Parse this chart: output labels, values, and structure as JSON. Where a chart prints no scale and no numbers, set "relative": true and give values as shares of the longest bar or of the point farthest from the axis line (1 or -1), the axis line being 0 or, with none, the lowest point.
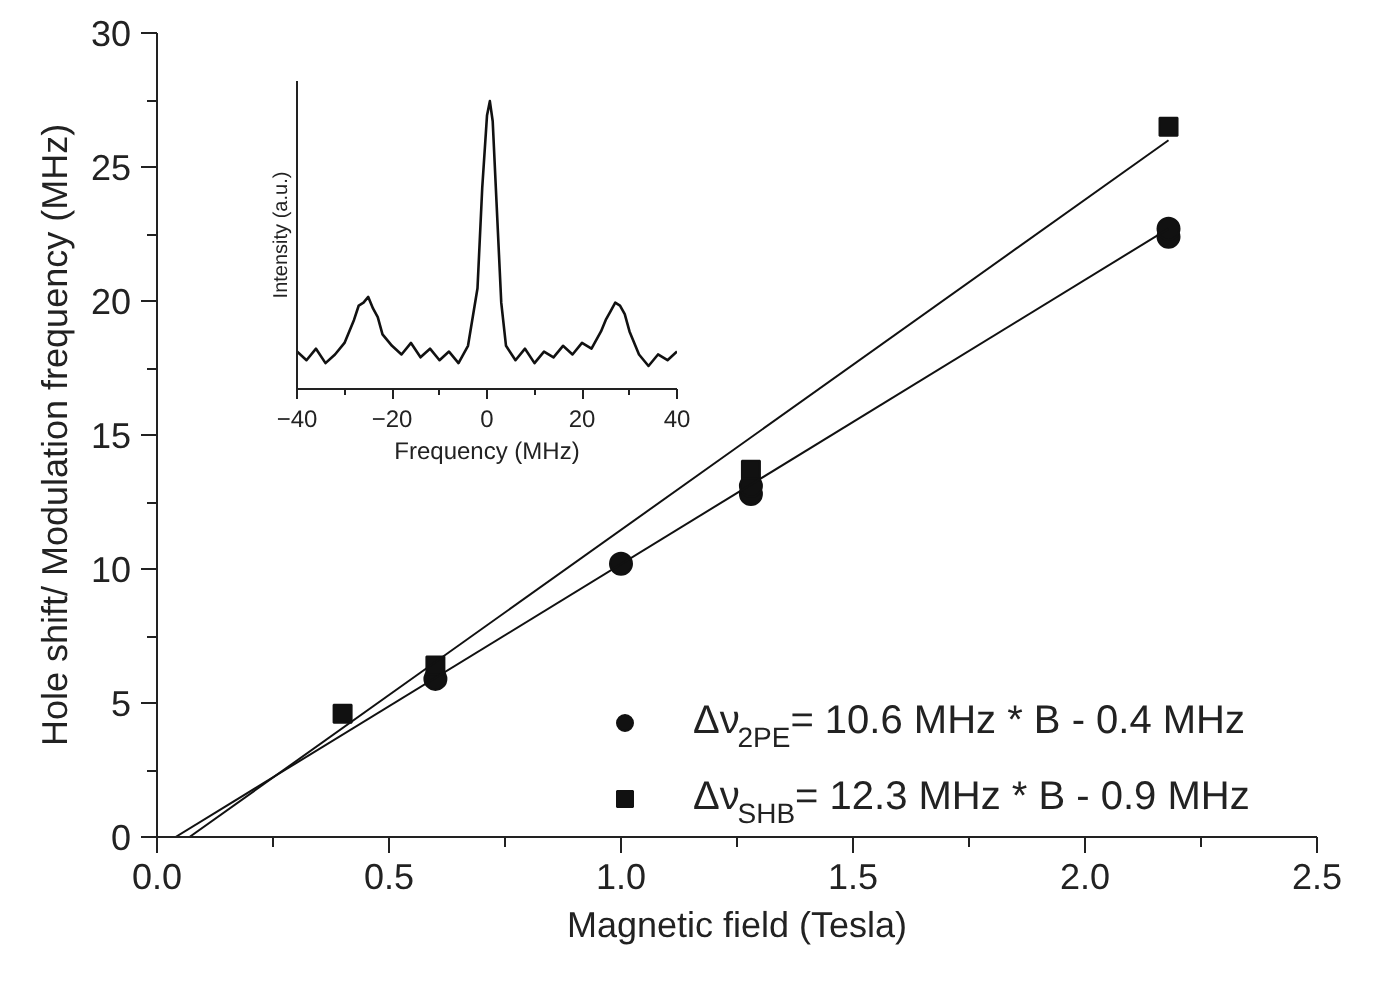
{
  "chart_data": [
    {
      "type": "scatter",
      "xlabel": "Magnetic field (Tesla)",
      "ylabel": "Hole shift/ Modulation frequency (MHz)",
      "xlim": [
        0,
        2.5
      ],
      "ylim": [
        0,
        30
      ],
      "xticks": [
        {
          "value": 0,
          "label": "0.0"
        },
        0.5,
        {
          "value": 1,
          "label": "1.0"
        },
        1.5,
        {
          "value": 2,
          "label": "2.0"
        },
        2.5
      ],
      "yticks": [
        0,
        5,
        10,
        15,
        20,
        25,
        30
      ],
      "grid": false,
      "legend": "bottom right",
      "series": [
        {
          "name": "Δν$_{2PE}$= 10.6 MHz * B - 0.4 MHz",
          "color": "#111111",
          "marker": "circle",
          "x": [
            0.6,
            1.0,
            1.28,
            1.28,
            2.18,
            2.18
          ],
          "values": [
            5.9,
            10.2,
            12.8,
            13.1,
            22.4,
            22.7
          ]
        },
        {
          "name": "Δν$_{SHB}$= 12.3 MHz * B - 0.9 MHz",
          "color": "#111111",
          "marker": "square",
          "x": [
            0.4,
            0.6,
            1.28,
            2.18
          ],
          "values": [
            4.6,
            6.4,
            13.7,
            26.5
          ]
        },
        {
          "type": "line",
          "color": "#111111",
          "x": [
            0.04,
            2.18
          ],
          "values": [
            0,
            22.7
          ]
        },
        {
          "type": "line",
          "color": "#111111",
          "x": [
            0.07,
            2.18
          ],
          "values": [
            0,
            26.0
          ]
        }
      ]
    },
    {
      "type": "line",
      "relative": true,
      "xlabel": "Frequency (MHz)",
      "ylabel": "Intensity (a.u.)",
      "xlim": [
        -40,
        40
      ],
      "xticks": [
        -40,
        -20,
        0,
        20,
        40
      ],
      "tick_labels": "x",
      "color": "#111111",
      "x": [
        -40,
        -38,
        -36,
        -34,
        -32,
        -30,
        -28,
        -27,
        -26,
        -25,
        -24,
        -23,
        -22,
        -20,
        -18,
        -16,
        -14,
        -12,
        -10,
        -8,
        -6,
        -4,
        -2,
        -1,
        0,
        0.6,
        1.2,
        2,
        3,
        4,
        6,
        8,
        10,
        12,
        14,
        16,
        18,
        20,
        22,
        24,
        25,
        26,
        27,
        28,
        29,
        30,
        32,
        34,
        36,
        38,
        40
      ],
      "values": [
        0.13,
        0.1,
        0.14,
        0.09,
        0.12,
        0.16,
        0.24,
        0.29,
        0.3,
        0.32,
        0.28,
        0.25,
        0.19,
        0.15,
        0.12,
        0.16,
        0.11,
        0.14,
        0.1,
        0.13,
        0.09,
        0.15,
        0.35,
        0.7,
        0.95,
        1.0,
        0.93,
        0.65,
        0.3,
        0.15,
        0.1,
        0.14,
        0.09,
        0.13,
        0.11,
        0.15,
        0.12,
        0.16,
        0.14,
        0.2,
        0.24,
        0.27,
        0.3,
        0.29,
        0.26,
        0.2,
        0.12,
        0.08,
        0.12,
        0.1,
        0.13
      ]
    }
  ]
}
